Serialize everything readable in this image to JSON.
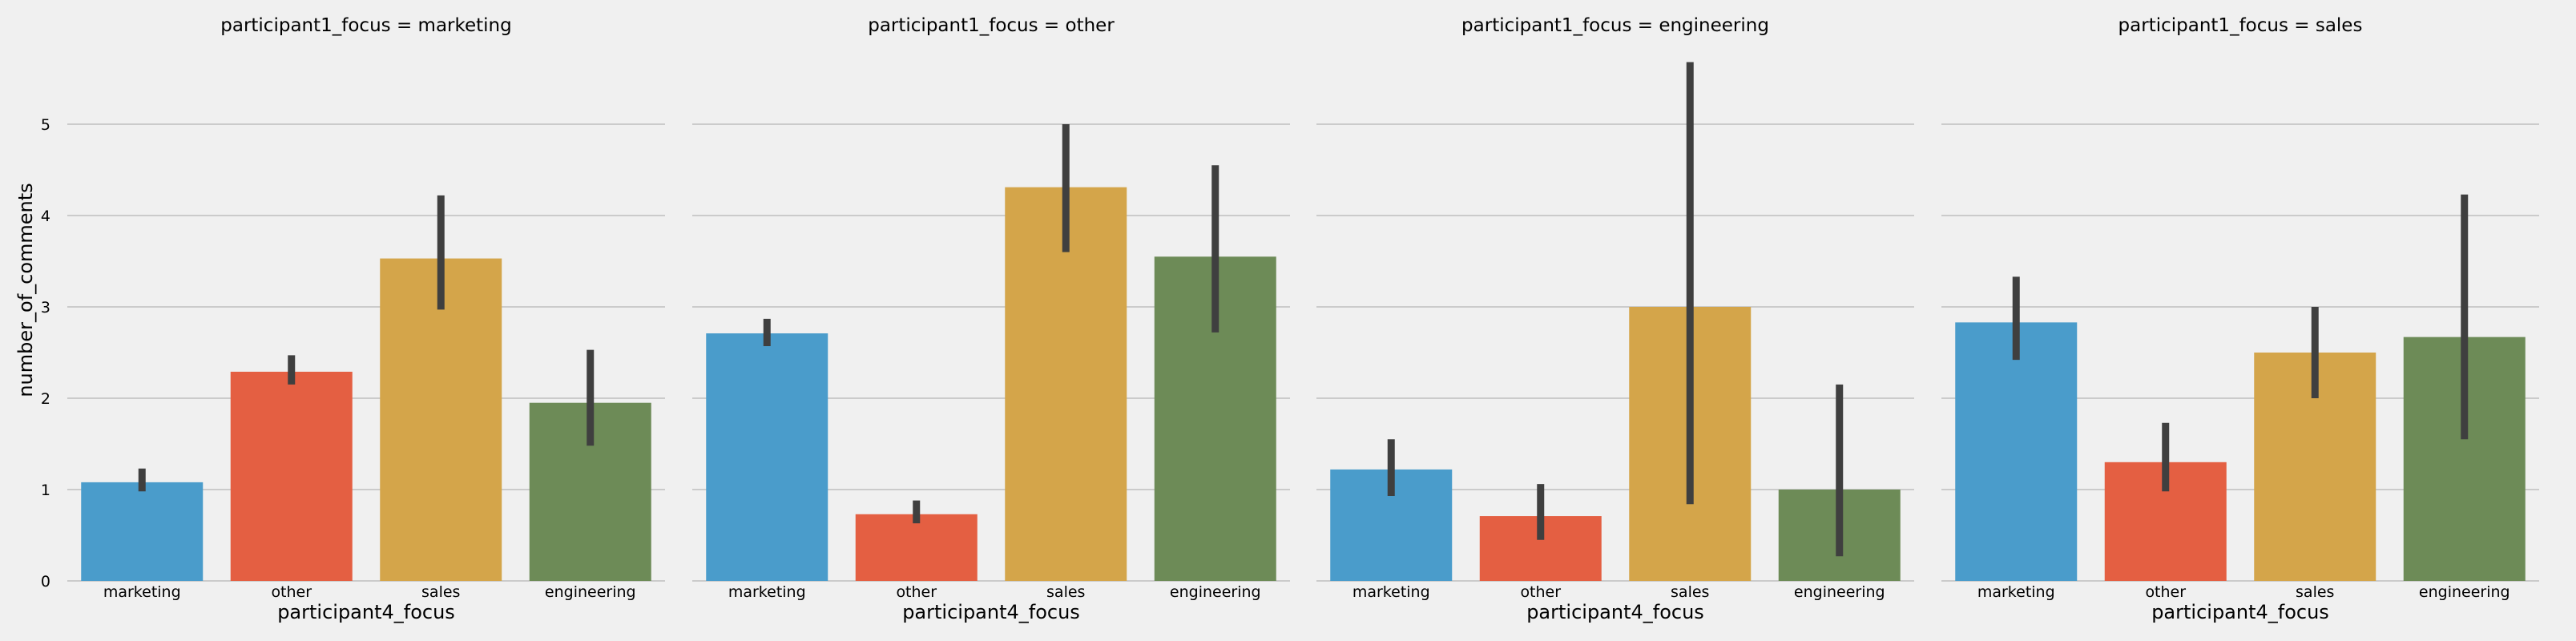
{
  "chart_data": {
    "type": "bar",
    "facet_title_prefix": "participant1_focus = ",
    "xlabel": "participant4_focus",
    "ylabel": "number_of_comments",
    "ylim": [
      0,
      5.7
    ],
    "yticks": [
      "0",
      "1",
      "2",
      "3",
      "4",
      "5"
    ],
    "grid": true,
    "categories": [
      "marketing",
      "other",
      "sales",
      "engineering"
    ],
    "colors": [
      "#4a9ccb",
      "#e45f42",
      "#d4a54a",
      "#6d8b57"
    ],
    "facets": [
      {
        "focus": "marketing",
        "values": [
          1.08,
          2.29,
          3.53,
          1.95
        ],
        "ci_low": [
          0.98,
          2.15,
          2.97,
          1.48
        ],
        "ci_high": [
          1.23,
          2.47,
          4.22,
          2.53
        ]
      },
      {
        "focus": "other",
        "values": [
          2.71,
          0.73,
          4.31,
          3.55
        ],
        "ci_low": [
          2.57,
          0.63,
          3.6,
          2.72
        ],
        "ci_high": [
          2.87,
          0.88,
          5.0,
          4.55
        ]
      },
      {
        "focus": "engineering",
        "values": [
          1.22,
          0.71,
          3.0,
          1.0
        ],
        "ci_low": [
          0.93,
          0.45,
          0.84,
          0.27
        ],
        "ci_high": [
          1.55,
          1.06,
          5.68,
          2.15
        ]
      },
      {
        "focus": "sales",
        "values": [
          2.83,
          1.3,
          2.5,
          2.67
        ],
        "ci_low": [
          2.42,
          0.98,
          2.0,
          1.55
        ],
        "ci_high": [
          3.33,
          1.73,
          3.0,
          4.23
        ]
      }
    ]
  }
}
